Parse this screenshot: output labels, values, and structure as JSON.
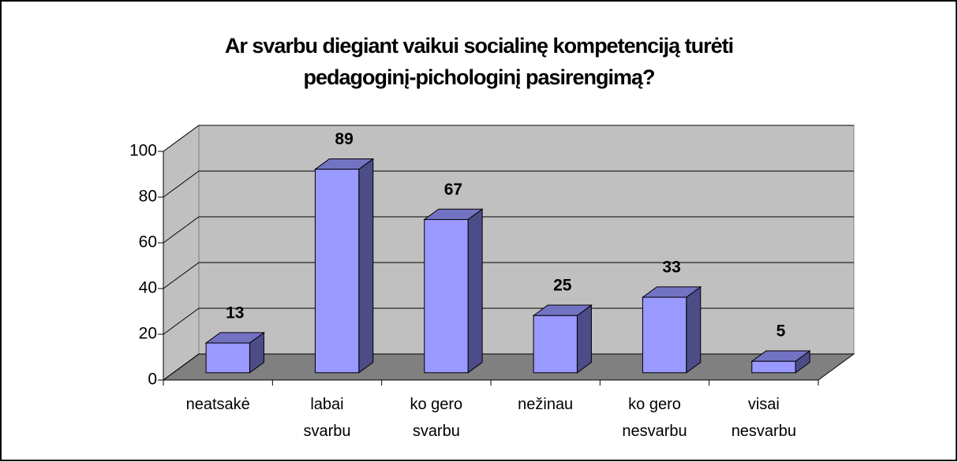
{
  "chart_data": {
    "type": "bar3d",
    "title": "Ar svarbu diegiant vaikui socialinę kompetenciją turėti pedagoginį-pichologinį pasirengimą?",
    "categories": [
      "neatsakė",
      "labai svarbu",
      "ko gero svarbu",
      "nežinau",
      "ko gero nesvarbu",
      "visai nesvarbu"
    ],
    "values": [
      13,
      89,
      67,
      25,
      33,
      5
    ],
    "color": "#9999ff",
    "ylim": [
      0,
      100
    ],
    "yticks": [
      0,
      20,
      40,
      60,
      80,
      100
    ],
    "grid": true
  }
}
